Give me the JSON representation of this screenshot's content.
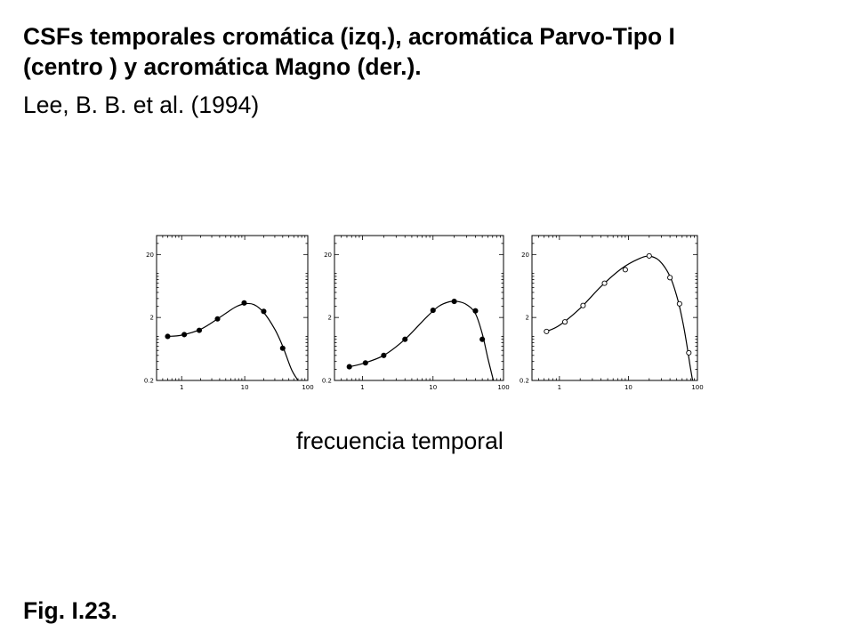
{
  "title": {
    "line1": "CSFs temporales cromática (izq.), acromática Parvo-Tipo I",
    "line2": "(centro ) y acromática Magno (der.)."
  },
  "citation": "Lee, B. B. et al. (1994)",
  "xaxis_label": "frecuencia temporal",
  "figure_label": "Fig. I.23.",
  "colors": {
    "curve": "#000000",
    "frame": "#000000"
  },
  "chart_data": [
    {
      "type": "line",
      "x_scale": "log",
      "y_scale": "log",
      "xlim": [
        0.4,
        100
      ],
      "ylim": [
        0.2,
        40
      ],
      "x_ticks": [
        "1",
        "10",
        "100"
      ],
      "y_ticks": [
        "20",
        "2",
        "0.2"
      ],
      "marker": "filled",
      "series": [
        {
          "x": [
            0.6,
            1.1,
            1.9,
            3.7,
            9.8,
            20,
            40
          ],
          "y": [
            1.0,
            1.07,
            1.25,
            1.9,
            3.4,
            2.5,
            0.65
          ]
        }
      ],
      "curve": {
        "x": [
          0.6,
          1.0,
          2.0,
          4.0,
          7.0,
          10.0,
          14.0,
          20.0,
          30.0,
          40.0,
          55.0,
          70.0
        ],
        "y": [
          1.0,
          1.05,
          1.3,
          2.0,
          2.9,
          3.3,
          3.2,
          2.4,
          1.3,
          0.7,
          0.3,
          0.2
        ]
      }
    },
    {
      "type": "line",
      "x_scale": "log",
      "y_scale": "log",
      "xlim": [
        0.4,
        100
      ],
      "ylim": [
        0.2,
        40
      ],
      "x_ticks": [
        "1",
        "10",
        "100"
      ],
      "y_ticks": [
        "20",
        "2",
        "0.2"
      ],
      "marker": "filled",
      "series": [
        {
          "x": [
            0.65,
            1.1,
            2.0,
            4.0,
            10.0,
            20.0,
            40.0,
            50.0
          ],
          "y": [
            0.33,
            0.38,
            0.5,
            0.9,
            2.6,
            3.6,
            2.55,
            0.9
          ]
        }
      ],
      "curve": {
        "x": [
          0.65,
          1.0,
          2.0,
          4.0,
          8.0,
          12.0,
          17.0,
          22.0,
          30.0,
          40.0,
          50.0,
          60.0,
          72.0
        ],
        "y": [
          0.33,
          0.37,
          0.5,
          0.9,
          2.0,
          3.0,
          3.55,
          3.6,
          3.2,
          2.3,
          1.1,
          0.45,
          0.2
        ]
      }
    },
    {
      "type": "line",
      "x_scale": "log",
      "y_scale": "log",
      "xlim": [
        0.4,
        100
      ],
      "ylim": [
        0.2,
        40
      ],
      "x_ticks": [
        "1",
        "10",
        "100"
      ],
      "y_ticks": [
        "20",
        "2",
        "0.2"
      ],
      "marker": "open",
      "series": [
        {
          "x": [
            0.65,
            1.2,
            2.2,
            4.5,
            9.0,
            20.0,
            40.0,
            55.0,
            75.0
          ],
          "y": [
            1.2,
            1.7,
            3.1,
            7.0,
            11.5,
            19.0,
            8.6,
            3.3,
            0.55
          ]
        }
      ],
      "curve": {
        "x": [
          0.65,
          1.0,
          2.0,
          4.0,
          8.0,
          14.0,
          20.0,
          28.0,
          40.0,
          52.0,
          62.0,
          70.0,
          78.0,
          85.0
        ],
        "y": [
          1.2,
          1.5,
          2.8,
          6.2,
          12.0,
          17.0,
          18.8,
          16.0,
          9.0,
          3.8,
          1.6,
          0.75,
          0.35,
          0.2
        ]
      }
    }
  ]
}
